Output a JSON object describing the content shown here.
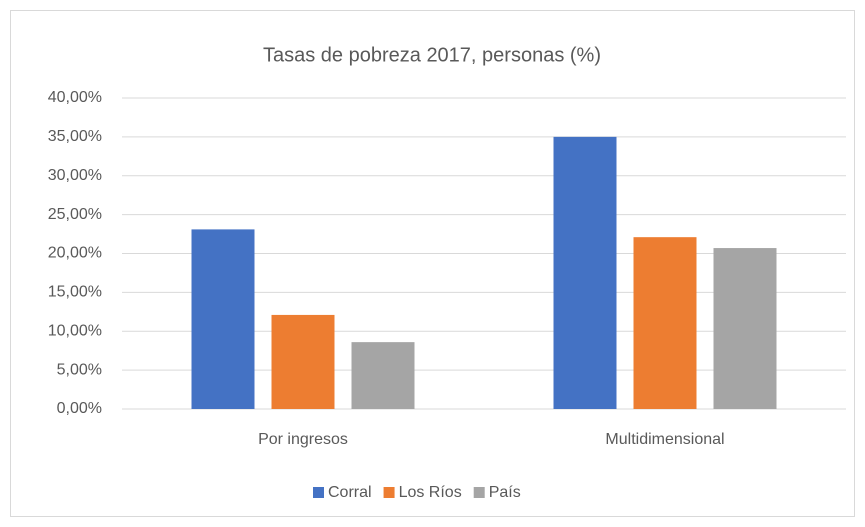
{
  "chart_data": {
    "type": "bar",
    "title": "Tasas de pobreza 2017, personas (%)",
    "categories": [
      "Por ingresos",
      "Multidimensional"
    ],
    "series": [
      {
        "name": "Corral",
        "color": "#4472c4",
        "values": [
          23.1,
          35.0
        ]
      },
      {
        "name": "Los Ríos",
        "color": "#ed7d31",
        "values": [
          12.1,
          22.1
        ]
      },
      {
        "name": "País",
        "color": "#a5a5a5",
        "values": [
          8.6,
          20.7
        ]
      }
    ],
    "ylim": [
      0,
      40
    ],
    "yticks": [
      {
        "value": 0,
        "label": "0,00%"
      },
      {
        "value": 5,
        "label": "5,00%"
      },
      {
        "value": 10,
        "label": "10,00%"
      },
      {
        "value": 15,
        "label": "15,00%"
      },
      {
        "value": 20,
        "label": "20,00%"
      },
      {
        "value": 25,
        "label": "25,00%"
      },
      {
        "value": 30,
        "label": "30,00%"
      },
      {
        "value": 35,
        "label": "35,00%"
      },
      {
        "value": 40,
        "label": "40,00%"
      }
    ],
    "grid": true,
    "legend": "bottom"
  }
}
